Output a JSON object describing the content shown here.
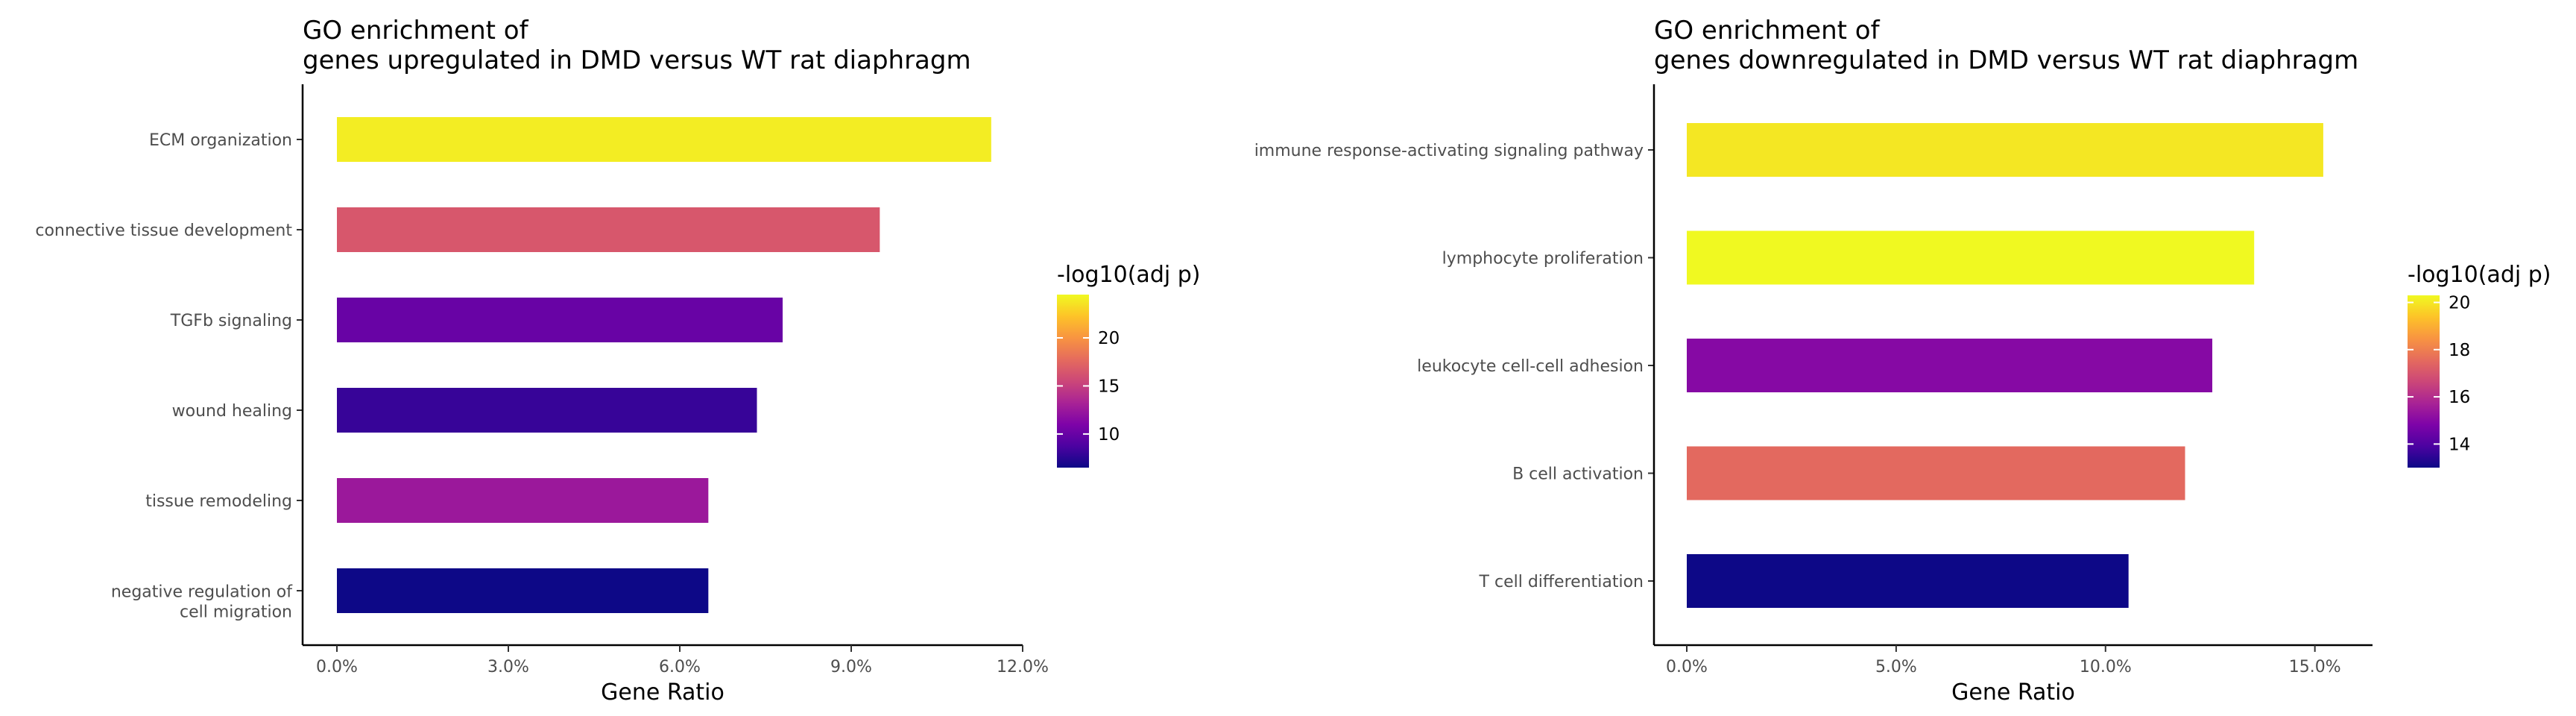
{
  "chart_data": [
    {
      "type": "bar",
      "orientation": "horizontal",
      "title": [
        "GO enrichment of",
        "genes upregulated in DMD versus WT rat diaphragm"
      ],
      "xlabel": "Gene Ratio",
      "ylabel": "",
      "xlim": [
        0,
        12
      ],
      "x_ticks": [
        "0.0%",
        "3.0%",
        "6.0%",
        "9.0%",
        "12.0%"
      ],
      "x_tick_values": [
        0,
        3,
        6,
        9,
        12
      ],
      "categories": [
        [
          "ECM organization"
        ],
        [
          "connective tissue development"
        ],
        [
          "TGFb signaling"
        ],
        [
          "wound healing"
        ],
        [
          "tissue remodeling"
        ],
        [
          "negative regulation of",
          "cell migration"
        ]
      ],
      "values": [
        11.45,
        9.5,
        7.8,
        7.35,
        6.5,
        6.5
      ],
      "color_values": [
        24,
        16.5,
        10,
        8,
        12.5,
        6.5
      ],
      "legend": {
        "title": "-log10(adj p)",
        "range": [
          6.5,
          24.5
        ],
        "ticks": [
          10,
          15,
          20
        ],
        "colormap": "plasma",
        "placement": "right"
      },
      "grid": false
    },
    {
      "type": "bar",
      "orientation": "horizontal",
      "title": [
        "GO enrichment of",
        "genes downregulated in DMD versus WT rat diaphragm"
      ],
      "xlabel": "Gene Ratio",
      "ylabel": "",
      "xlim": [
        0,
        15.7
      ],
      "x_ticks": [
        "0.0%",
        "5.0%",
        "10.0%",
        "15.0%"
      ],
      "x_tick_values": [
        0,
        5,
        10,
        15
      ],
      "categories": [
        [
          "immune response-activating signaling pathway"
        ],
        [
          "lymphocyte proliferation"
        ],
        [
          "leukocyte cell-cell adhesion"
        ],
        [
          "B cell activation"
        ],
        [
          "T cell differentiation"
        ]
      ],
      "values": [
        15.2,
        13.55,
        12.55,
        11.9,
        10.55
      ],
      "color_values": [
        20.0,
        20.3,
        15.0,
        17.5,
        13.0
      ],
      "legend": {
        "title": "-log10(adj p)",
        "range": [
          13.0,
          20.3
        ],
        "ticks": [
          14,
          16,
          18,
          20
        ],
        "colormap": "plasma",
        "placement": "right"
      },
      "grid": false
    }
  ]
}
